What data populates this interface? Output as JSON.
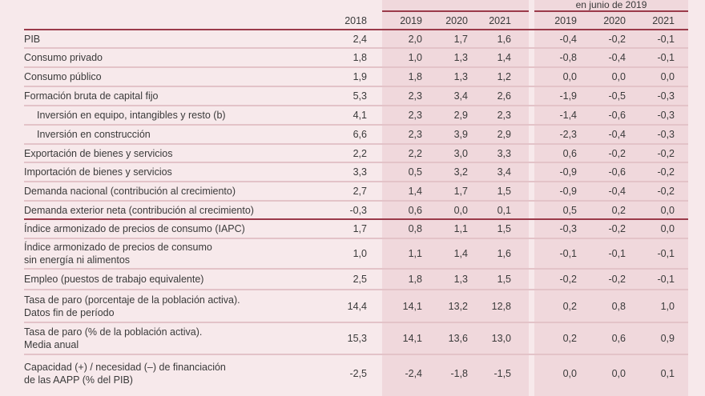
{
  "group_header": "en junio de 2019",
  "columns": [
    "2018",
    "2019",
    "2020",
    "2021",
    "2019",
    "2020",
    "2021"
  ],
  "rows": [
    {
      "label": "PIB",
      "values": [
        "2,4",
        "2,0",
        "1,7",
        "1,6",
        "-0,4",
        "-0,2",
        "-0,1"
      ]
    },
    {
      "label": "Consumo privado",
      "values": [
        "1,8",
        "1,0",
        "1,3",
        "1,4",
        "-0,8",
        "-0,4",
        "-0,1"
      ]
    },
    {
      "label": "Consumo público",
      "values": [
        "1,9",
        "1,8",
        "1,3",
        "1,2",
        "0,0",
        "0,0",
        "0,0"
      ]
    },
    {
      "label": "Formación bruta de capital fijo",
      "values": [
        "5,3",
        "2,3",
        "3,4",
        "2,6",
        "-1,9",
        "-0,5",
        "-0,3"
      ]
    },
    {
      "label": "Inversión en equipo, intangibles y resto (b)",
      "indent": true,
      "values": [
        "4,1",
        "2,3",
        "2,9",
        "2,3",
        "-1,4",
        "-0,6",
        "-0,3"
      ]
    },
    {
      "label": "Inversión en construcción",
      "indent": true,
      "values": [
        "6,6",
        "2,3",
        "3,9",
        "2,9",
        "-2,3",
        "-0,4",
        "-0,3"
      ]
    },
    {
      "label": "Exportación de bienes y servicios",
      "values": [
        "2,2",
        "2,2",
        "3,0",
        "3,3",
        "0,6",
        "-0,2",
        "-0,2"
      ]
    },
    {
      "label": "Importación de bienes y servicios",
      "values": [
        "3,3",
        "0,5",
        "3,2",
        "3,4",
        "-0,9",
        "-0,6",
        "-0,2"
      ]
    },
    {
      "label": "Demanda nacional (contribución al crecimiento)",
      "values": [
        "2,7",
        "1,4",
        "1,7",
        "1,5",
        "-0,9",
        "-0,4",
        "-0,2"
      ]
    },
    {
      "label": "Demanda exterior neta (contribución al crecimiento)",
      "values": [
        "-0,3",
        "0,6",
        "0,0",
        "0,1",
        "0,5",
        "0,2",
        "0,0"
      ]
    },
    {
      "label": "Índice armonizado de precios de consumo (IAPC)",
      "values": [
        "1,7",
        "0,8",
        "1,1",
        "1,5",
        "-0,3",
        "-0,2",
        "0,0"
      ]
    },
    {
      "label": "Índice armonizado de precios de consumo",
      "label2": "sin energía ni alimentos",
      "values": [
        "1,0",
        "1,1",
        "1,4",
        "1,6",
        "-0,1",
        "-0,1",
        "-0,1"
      ]
    },
    {
      "label": "Empleo (puestos de trabajo equivalente)",
      "values": [
        "2,5",
        "1,8",
        "1,3",
        "1,5",
        "-0,2",
        "-0,2",
        "-0,1"
      ]
    },
    {
      "label": "Tasa de paro (porcentaje de la población activa).",
      "label2": "Datos fin de período",
      "values": [
        "14,4",
        "14,1",
        "13,2",
        "12,8",
        "0,2",
        "0,8",
        "1,0"
      ]
    },
    {
      "label": "Tasa de paro (% de la población activa).",
      "label2": "Media anual",
      "values": [
        "15,3",
        "14,1",
        "13,6",
        "13,0",
        "0,2",
        "0,6",
        "0,9"
      ]
    },
    {
      "label": "Capacidad (+) / necesidad (–) de financiación",
      "label2": "de las AAPP (% del PIB)",
      "values": [
        "-2,5",
        "-2,4",
        "-1,8",
        "-1,5",
        "0,0",
        "0,0",
        "0,1"
      ]
    }
  ]
}
